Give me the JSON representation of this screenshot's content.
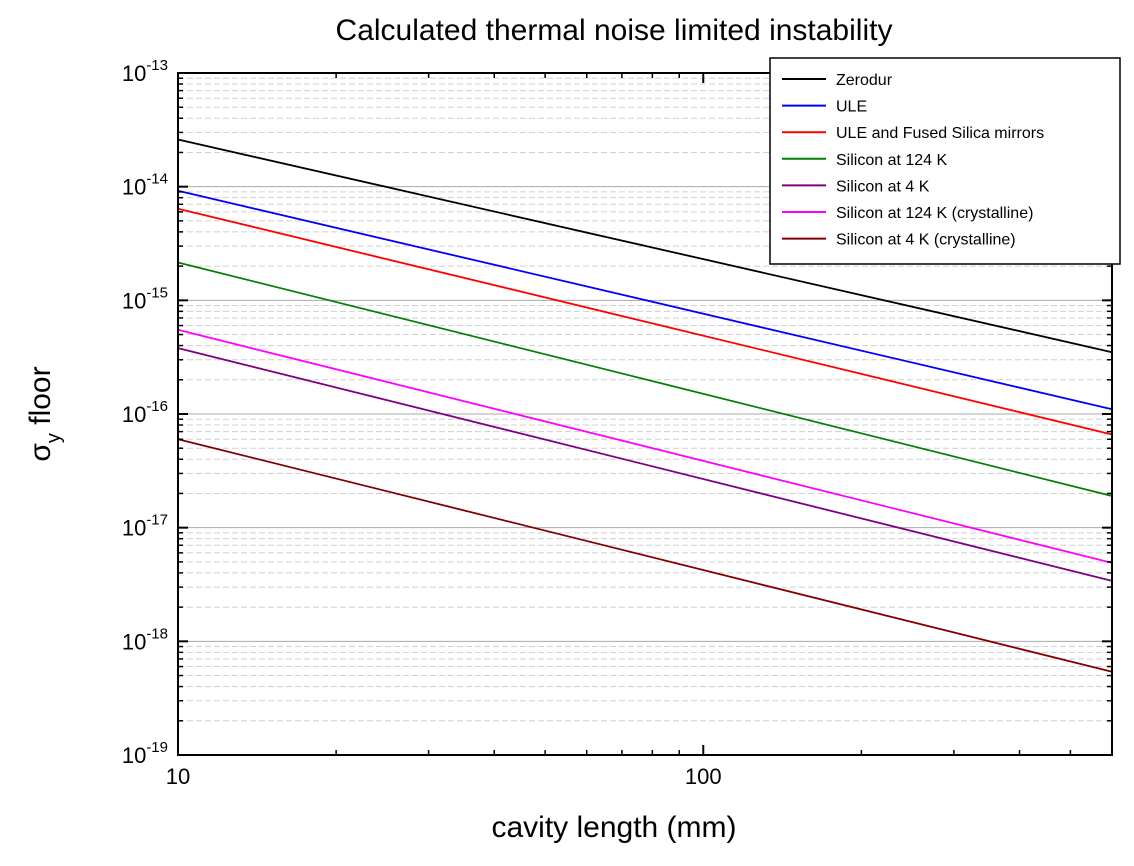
{
  "chart_data": {
    "type": "line",
    "title": "Calculated thermal noise limited instability",
    "xlabel": "cavity length (mm)",
    "ylabel": {
      "main": "σ",
      "subscript": "y",
      "suffix": " floor"
    },
    "x_scale": "log",
    "y_scale": "log",
    "xlim": [
      10,
      600
    ],
    "ylim": [
      1e-19,
      1e-13
    ],
    "x_ticks": [
      {
        "value": 10,
        "label": "10"
      },
      {
        "value": 100,
        "label": "100"
      }
    ],
    "y_ticks": [
      {
        "value": 1e-13,
        "base": "10",
        "exp": "-13"
      },
      {
        "value": 1e-14,
        "base": "10",
        "exp": "-14"
      },
      {
        "value": 1e-15,
        "base": "10",
        "exp": "-15"
      },
      {
        "value": 1e-16,
        "base": "10",
        "exp": "-16"
      },
      {
        "value": 1e-17,
        "base": "10",
        "exp": "-17"
      },
      {
        "value": 1e-18,
        "base": "10",
        "exp": "-18"
      },
      {
        "value": 1e-19,
        "base": "10",
        "exp": "-19"
      }
    ],
    "grid": true,
    "legend_position": "top-right",
    "series": [
      {
        "name": "Zerodur",
        "color": "#000000",
        "x": [
          10,
          600
        ],
        "y": [
          2.6e-14,
          3.5e-16
        ]
      },
      {
        "name": "ULE",
        "color": "#0000ff",
        "x": [
          10,
          600
        ],
        "y": [
          9.2e-15,
          1.1e-16
        ]
      },
      {
        "name": "ULE and Fused Silica mirrors",
        "color": "#ff0000",
        "x": [
          10,
          600
        ],
        "y": [
          6.4e-15,
          6.6e-17
        ]
      },
      {
        "name": "Silicon at 124 K",
        "color": "#008000",
        "x": [
          10,
          600
        ],
        "y": [
          2.15e-15,
          1.9e-17
        ]
      },
      {
        "name": "Silicon at 4 K",
        "color": "#800080",
        "x": [
          10,
          600
        ],
        "y": [
          3.8e-16,
          3.4e-18
        ]
      },
      {
        "name": "Silicon at 124 K (crystalline)",
        "color": "#ff00ff",
        "x": [
          10,
          600
        ],
        "y": [
          5.5e-16,
          4.9e-18
        ]
      },
      {
        "name": "Silicon at 4 K (crystalline)",
        "color": "#800000",
        "x": [
          10,
          600
        ],
        "y": [
          6e-17,
          5.4e-19
        ]
      }
    ]
  }
}
